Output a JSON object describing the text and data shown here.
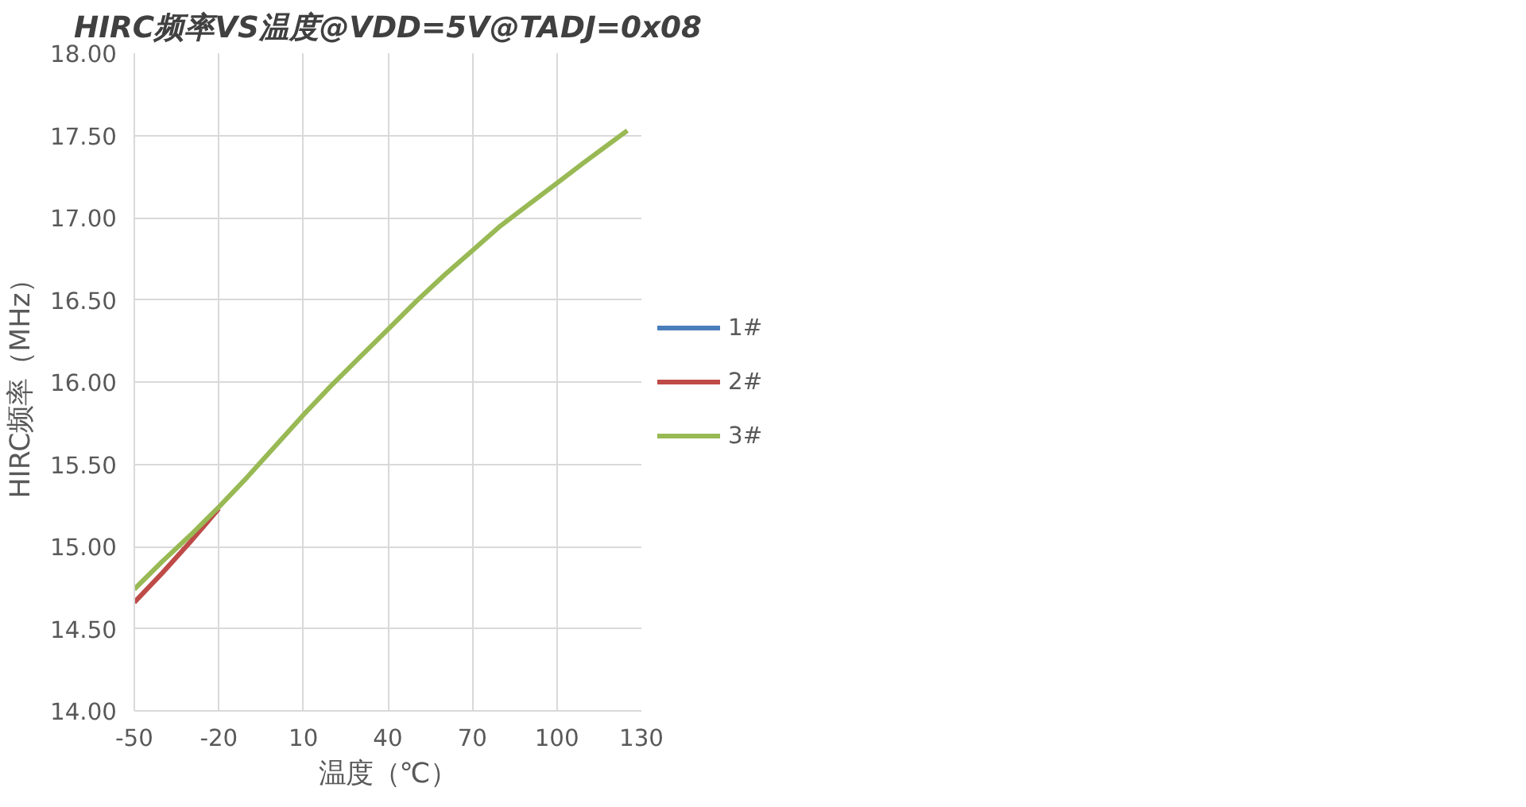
{
  "chart_data": {
    "type": "line",
    "title": "HIRC频率VS温度@VDD=5V@TADJ=0x08",
    "xlabel": "温度（℃）",
    "ylabel": "HIRC频率（MHz）",
    "x": [
      -50,
      -40,
      -30,
      -20,
      -10,
      0,
      10,
      20,
      30,
      40,
      50,
      60,
      70,
      80,
      90,
      100,
      110,
      125
    ],
    "series": [
      {
        "name": "1#",
        "color": "#4a7ebb",
        "values": [
          null,
          null,
          null,
          null,
          null,
          null,
          null,
          null,
          null,
          null,
          null,
          null,
          null,
          null,
          null,
          null,
          null,
          null
        ]
      },
      {
        "name": "2#",
        "color": "#be4b48",
        "values": [
          14.66,
          14.84,
          15.03,
          15.23,
          null,
          null,
          null,
          null,
          null,
          null,
          null,
          null,
          null,
          null,
          null,
          null,
          null,
          null
        ]
      },
      {
        "name": "3#",
        "color": "#98b954",
        "values": [
          14.74,
          14.91,
          15.07,
          15.24,
          15.42,
          15.61,
          15.8,
          15.98,
          16.15,
          16.32,
          16.49,
          16.65,
          16.8,
          16.95,
          17.08,
          17.21,
          17.34,
          17.53
        ]
      }
    ],
    "xlim": [
      -50,
      130
    ],
    "xticks": [
      -50,
      -20,
      10,
      40,
      70,
      100,
      130
    ],
    "ylim": [
      14,
      18
    ],
    "yticks": [
      {
        "value": 14,
        "label": "14.00"
      },
      {
        "value": 14.5,
        "label": "14.50"
      },
      {
        "value": 15,
        "label": "15.00"
      },
      {
        "value": 15.5,
        "label": "15.50"
      },
      {
        "value": 16,
        "label": "16.00"
      },
      {
        "value": 16.5,
        "label": "16.50"
      },
      {
        "value": 17,
        "label": "17.00"
      },
      {
        "value": 17.5,
        "label": "17.50"
      },
      {
        "value": 18,
        "label": "18.00"
      }
    ],
    "grid": true,
    "legend": "right",
    "line_style": "solid",
    "marker": "none"
  }
}
